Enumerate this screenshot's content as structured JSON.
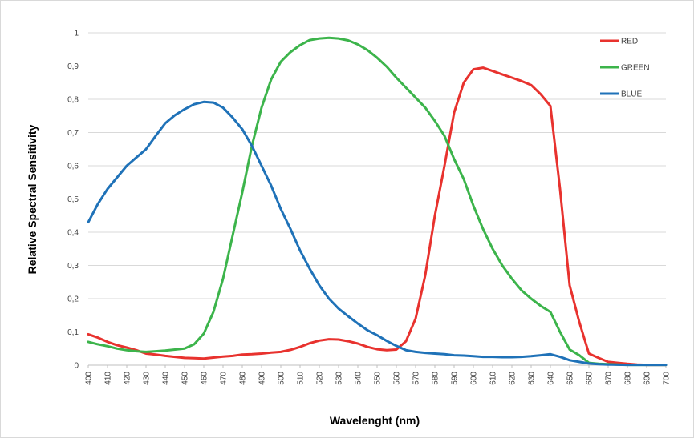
{
  "chart_data": {
    "type": "line",
    "title": "",
    "xlabel": "Wavelenght (nm)",
    "ylabel": "Relative Spectral Sensitivity",
    "xlim": [
      400,
      700
    ],
    "ylim": [
      0,
      1
    ],
    "x_ticks": [
      "400",
      "410",
      "420",
      "430",
      "440",
      "450",
      "460",
      "470",
      "480",
      "490",
      "500",
      "510",
      "520",
      "530",
      "540",
      "550",
      "560",
      "570",
      "580",
      "590",
      "600",
      "610",
      "620",
      "630",
      "640",
      "650",
      "660",
      "670",
      "680",
      "690",
      "700"
    ],
    "y_ticks": [
      "0",
      "0,1",
      "0,2",
      "0,3",
      "0,4",
      "0,5",
      "0,6",
      "0,7",
      "0,8",
      "0,9",
      "1"
    ],
    "grid": true,
    "legend_position": "top-right",
    "series": [
      {
        "name": "RED",
        "color": "#e8322e",
        "points": [
          [
            400,
            0.093
          ],
          [
            405,
            0.083
          ],
          [
            410,
            0.07
          ],
          [
            415,
            0.06
          ],
          [
            420,
            0.053
          ],
          [
            425,
            0.045
          ],
          [
            430,
            0.035
          ],
          [
            435,
            0.032
          ],
          [
            440,
            0.028
          ],
          [
            445,
            0.025
          ],
          [
            450,
            0.022
          ],
          [
            455,
            0.021
          ],
          [
            460,
            0.02
          ],
          [
            465,
            0.023
          ],
          [
            470,
            0.026
          ],
          [
            475,
            0.028
          ],
          [
            480,
            0.032
          ],
          [
            485,
            0.033
          ],
          [
            490,
            0.035
          ],
          [
            495,
            0.038
          ],
          [
            500,
            0.04
          ],
          [
            505,
            0.046
          ],
          [
            510,
            0.055
          ],
          [
            515,
            0.066
          ],
          [
            520,
            0.074
          ],
          [
            525,
            0.078
          ],
          [
            530,
            0.077
          ],
          [
            535,
            0.072
          ],
          [
            540,
            0.065
          ],
          [
            545,
            0.055
          ],
          [
            550,
            0.048
          ],
          [
            555,
            0.045
          ],
          [
            560,
            0.047
          ],
          [
            565,
            0.072
          ],
          [
            570,
            0.14
          ],
          [
            575,
            0.27
          ],
          [
            580,
            0.45
          ],
          [
            585,
            0.6
          ],
          [
            590,
            0.76
          ],
          [
            595,
            0.85
          ],
          [
            600,
            0.89
          ],
          [
            605,
            0.895
          ],
          [
            610,
            0.885
          ],
          [
            615,
            0.875
          ],
          [
            620,
            0.865
          ],
          [
            625,
            0.855
          ],
          [
            630,
            0.843
          ],
          [
            635,
            0.815
          ],
          [
            640,
            0.78
          ],
          [
            645,
            0.53
          ],
          [
            650,
            0.24
          ],
          [
            655,
            0.13
          ],
          [
            660,
            0.035
          ],
          [
            665,
            0.022
          ],
          [
            670,
            0.01
          ],
          [
            675,
            0.007
          ],
          [
            680,
            0.004
          ],
          [
            685,
            0.002
          ],
          [
            690,
            0.001
          ],
          [
            695,
            0.001
          ],
          [
            700,
            0.001
          ]
        ]
      },
      {
        "name": "GREEN",
        "color": "#3cb44b",
        "points": [
          [
            400,
            0.07
          ],
          [
            405,
            0.063
          ],
          [
            410,
            0.057
          ],
          [
            415,
            0.05
          ],
          [
            420,
            0.045
          ],
          [
            425,
            0.042
          ],
          [
            430,
            0.04
          ],
          [
            435,
            0.042
          ],
          [
            440,
            0.044
          ],
          [
            445,
            0.047
          ],
          [
            450,
            0.05
          ],
          [
            455,
            0.063
          ],
          [
            460,
            0.095
          ],
          [
            465,
            0.16
          ],
          [
            470,
            0.26
          ],
          [
            475,
            0.39
          ],
          [
            480,
            0.52
          ],
          [
            485,
            0.66
          ],
          [
            490,
            0.775
          ],
          [
            495,
            0.86
          ],
          [
            500,
            0.913
          ],
          [
            505,
            0.942
          ],
          [
            510,
            0.963
          ],
          [
            515,
            0.978
          ],
          [
            520,
            0.983
          ],
          [
            525,
            0.985
          ],
          [
            530,
            0.983
          ],
          [
            535,
            0.977
          ],
          [
            540,
            0.965
          ],
          [
            545,
            0.948
          ],
          [
            550,
            0.925
          ],
          [
            555,
            0.898
          ],
          [
            560,
            0.865
          ],
          [
            565,
            0.835
          ],
          [
            570,
            0.805
          ],
          [
            575,
            0.775
          ],
          [
            580,
            0.735
          ],
          [
            585,
            0.69
          ],
          [
            590,
            0.62
          ],
          [
            595,
            0.56
          ],
          [
            600,
            0.48
          ],
          [
            605,
            0.41
          ],
          [
            610,
            0.35
          ],
          [
            615,
            0.3
          ],
          [
            620,
            0.26
          ],
          [
            625,
            0.225
          ],
          [
            630,
            0.2
          ],
          [
            635,
            0.178
          ],
          [
            640,
            0.16
          ],
          [
            645,
            0.1
          ],
          [
            650,
            0.047
          ],
          [
            655,
            0.03
          ],
          [
            660,
            0.007
          ],
          [
            665,
            0.004
          ],
          [
            670,
            0.003
          ],
          [
            675,
            0.002
          ],
          [
            680,
            0.001
          ],
          [
            690,
            0.001
          ],
          [
            700,
            0.001
          ]
        ]
      },
      {
        "name": "BLUE",
        "color": "#1f72b8",
        "points": [
          [
            400,
            0.43
          ],
          [
            405,
            0.485
          ],
          [
            410,
            0.53
          ],
          [
            415,
            0.565
          ],
          [
            420,
            0.6
          ],
          [
            425,
            0.625
          ],
          [
            430,
            0.65
          ],
          [
            435,
            0.69
          ],
          [
            440,
            0.728
          ],
          [
            445,
            0.752
          ],
          [
            450,
            0.77
          ],
          [
            455,
            0.785
          ],
          [
            460,
            0.792
          ],
          [
            465,
            0.79
          ],
          [
            470,
            0.775
          ],
          [
            475,
            0.745
          ],
          [
            480,
            0.71
          ],
          [
            485,
            0.66
          ],
          [
            490,
            0.6
          ],
          [
            495,
            0.54
          ],
          [
            500,
            0.47
          ],
          [
            505,
            0.41
          ],
          [
            510,
            0.345
          ],
          [
            515,
            0.29
          ],
          [
            520,
            0.24
          ],
          [
            525,
            0.2
          ],
          [
            530,
            0.17
          ],
          [
            535,
            0.147
          ],
          [
            540,
            0.125
          ],
          [
            545,
            0.105
          ],
          [
            550,
            0.09
          ],
          [
            555,
            0.073
          ],
          [
            560,
            0.058
          ],
          [
            565,
            0.045
          ],
          [
            570,
            0.04
          ],
          [
            575,
            0.037
          ],
          [
            580,
            0.035
          ],
          [
            585,
            0.033
          ],
          [
            590,
            0.03
          ],
          [
            595,
            0.029
          ],
          [
            600,
            0.027
          ],
          [
            605,
            0.025
          ],
          [
            610,
            0.025
          ],
          [
            615,
            0.024
          ],
          [
            620,
            0.024
          ],
          [
            625,
            0.025
          ],
          [
            630,
            0.027
          ],
          [
            635,
            0.03
          ],
          [
            640,
            0.033
          ],
          [
            645,
            0.025
          ],
          [
            650,
            0.015
          ],
          [
            655,
            0.01
          ],
          [
            660,
            0.005
          ],
          [
            665,
            0.003
          ],
          [
            670,
            0.002
          ],
          [
            680,
            0.001
          ],
          [
            690,
            0.001
          ],
          [
            700,
            0.001
          ]
        ]
      }
    ]
  }
}
